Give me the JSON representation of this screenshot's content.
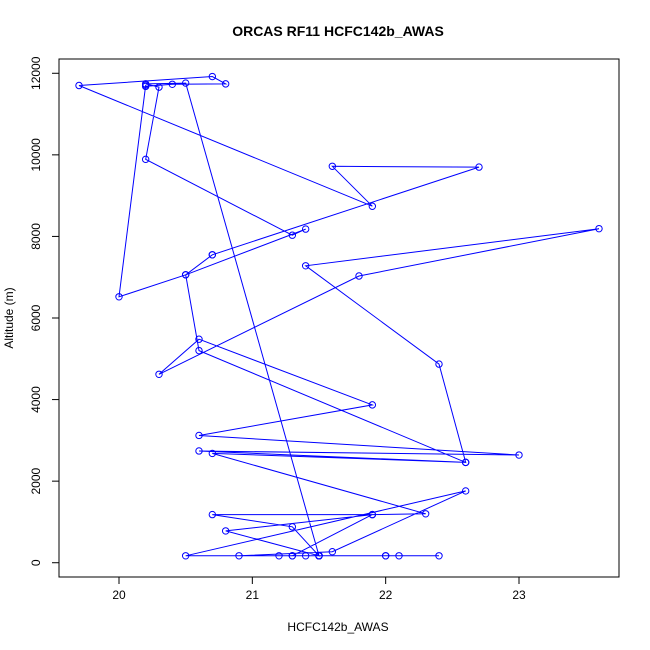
{
  "chart_data": {
    "type": "line",
    "title": "ORCAS RF11 HCFC142b_AWAS",
    "xlabel": "HCFC142b_AWAS",
    "ylabel": "Altitude (m)",
    "xlim": [
      19.55,
      23.75
    ],
    "ylim": [
      -350,
      12350
    ],
    "xticks": [
      20,
      21,
      22,
      23
    ],
    "yticks": [
      0,
      2000,
      4000,
      6000,
      8000,
      10000,
      12000
    ],
    "series": [
      {
        "color": "#0000ff",
        "marker": "open-circle",
        "x": [
          22.4,
          21.5,
          21.5,
          21.5,
          21.5,
          22.0,
          21.5,
          21.5,
          21.2,
          21.5,
          22.0,
          22.1,
          21.5,
          21.3,
          20.9,
          21.6,
          22.6,
          20.5,
          21.5,
          21.4,
          21.3,
          21.9,
          20.8,
          21.5,
          21.3,
          20.7,
          21.9,
          22.3,
          20.7,
          22.6,
          20.6,
          23.0,
          20.6,
          21.9,
          20.6,
          20.3,
          21.8,
          23.6,
          21.4,
          22.4,
          22.6,
          20.6,
          20.5,
          20.7,
          20.7,
          22.7,
          21.6,
          21.9,
          19.7,
          20.7,
          20.8,
          20.4,
          20.2,
          20.2,
          20.0,
          20.5,
          21.4,
          21.3,
          20.2,
          20.3,
          20.2,
          20.5,
          21.5
        ],
        "y": [
          170,
          170,
          170,
          170,
          170,
          170,
          170,
          170,
          170,
          170,
          170,
          170,
          170,
          170,
          170,
          270,
          1760,
          170,
          170,
          170,
          170,
          1180,
          780,
          170,
          880,
          1180,
          1180,
          1200,
          2680,
          2460,
          2740,
          2640,
          3120,
          3870,
          5480,
          4620,
          7030,
          8190,
          7280,
          4870,
          2460,
          5200,
          7060,
          7550,
          7550,
          9700,
          9720,
          8740,
          11700,
          11920,
          11740,
          11730,
          11680,
          11710,
          6520,
          7060,
          8180,
          8030,
          9890,
          11660,
          11740,
          11760,
          170
        ]
      }
    ]
  }
}
